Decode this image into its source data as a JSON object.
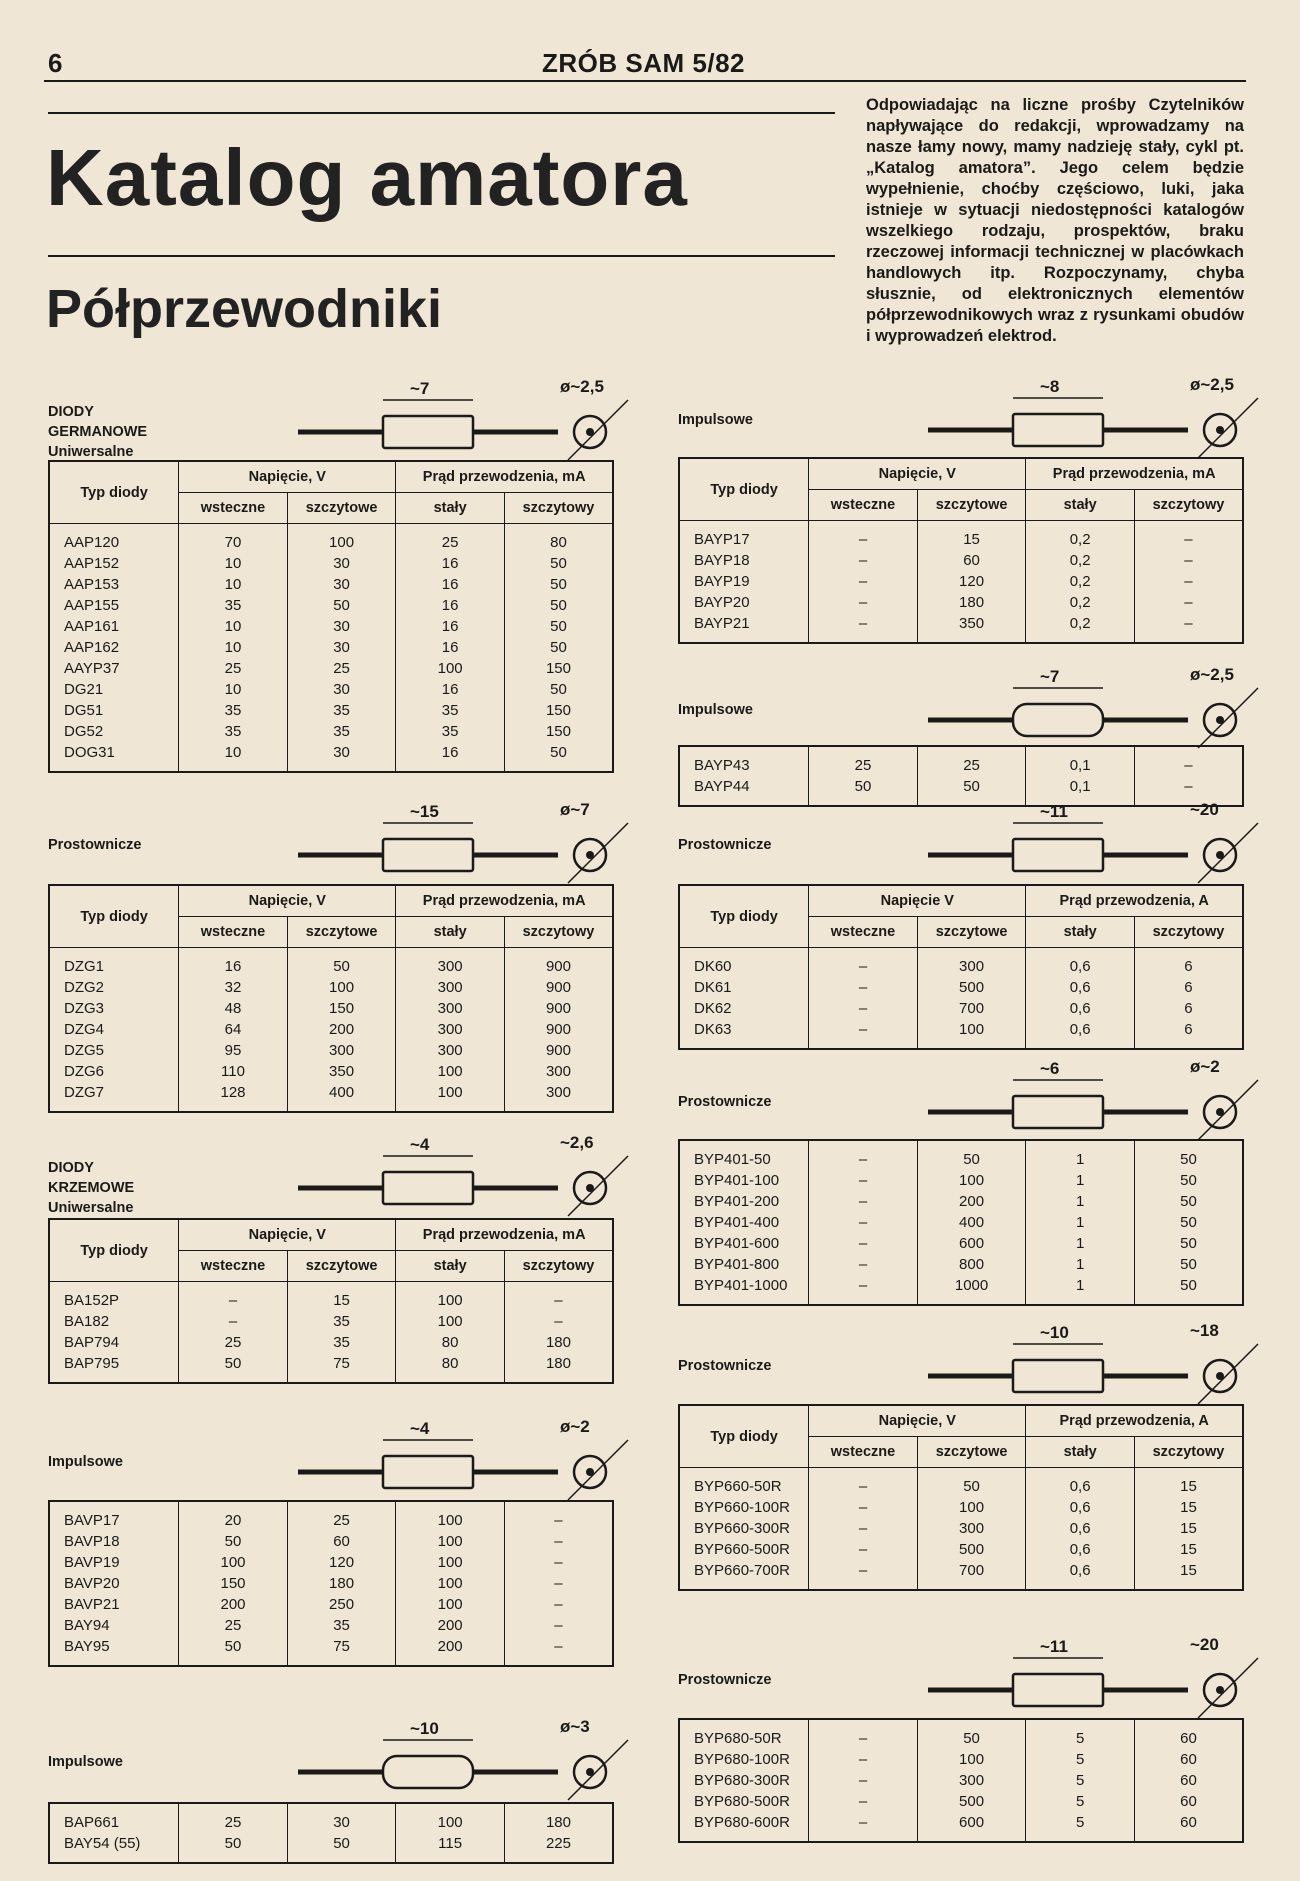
{
  "header": {
    "page_number": "6",
    "magazine": "ZRÓB SAM 5/82"
  },
  "title": "Katalog amatora",
  "subtitle": "Półprzewodniki",
  "intro": "Odpowiadając na liczne prośby Czytelników napływające do redakcji, wprowadzamy na nasze łamy nowy, mamy nadzieję stały, cykl pt. „Katalog amatora”. Jego celem będzie wypełnienie, choćby częściowo, luki, jaka istnieje w sytuacji niedostępności katalogów wszelkiego rodzaju, prospektów, braku rzeczowej informacji technicznej w placówkach handlowych itp. Rozpoczynamy, chyba słusznie, od elektronicznych elementów półprzewodnikowych wraz z rysunkami obudów i wyprowadzeń elektrod.",
  "headers_mA": {
    "type": "Typ diody",
    "voltage": "Napięcie, V",
    "current": "Prąd przewodzenia, mA",
    "cols": [
      "wsteczne",
      "szczytowe",
      "stały",
      "szczytowy"
    ]
  },
  "headers_A": {
    "type": "Typ diody",
    "voltage": "Napięcie V",
    "current": "Prąd przewodzenia, A",
    "cols": [
      "wsteczne",
      "szczytowe",
      "stały",
      "szczytowy"
    ]
  },
  "headers_A2": {
    "type": "Typ diody",
    "voltage": "Napięcie, V",
    "current": "Prąd przewodzenia, A",
    "cols": [
      "wsteczne",
      "szczytowe",
      "stały",
      "szczytowy"
    ]
  },
  "sections": [
    {
      "group": "DIODY GERMANOWE",
      "label": "Uniwersalne",
      "dims": [
        "~7",
        "ø~2,5"
      ],
      "header": "headers_mA",
      "rows": [
        [
          "AAP120",
          "70",
          "100",
          "25",
          "80"
        ],
        [
          "AAP152",
          "10",
          "30",
          "16",
          "50"
        ],
        [
          "AAP153",
          "10",
          "30",
          "16",
          "50"
        ],
        [
          "AAP155",
          "35",
          "50",
          "16",
          "50"
        ],
        [
          "AAP161",
          "10",
          "30",
          "16",
          "50"
        ],
        [
          "AAP162",
          "10",
          "30",
          "16",
          "50"
        ],
        [
          "AAYP37",
          "25",
          "25",
          "100",
          "150"
        ],
        [
          "DG21",
          "10",
          "30",
          "16",
          "50"
        ],
        [
          "DG51",
          "35",
          "35",
          "35",
          "150"
        ],
        [
          "DG52",
          "35",
          "35",
          "35",
          "150"
        ],
        [
          "DOG31",
          "10",
          "30",
          "16",
          "50"
        ]
      ]
    },
    {
      "label": "Prostownicze",
      "dims": [
        "~15",
        "ø~7"
      ],
      "header": "headers_mA",
      "rows": [
        [
          "DZG1",
          "16",
          "50",
          "300",
          "900"
        ],
        [
          "DZG2",
          "32",
          "100",
          "300",
          "900"
        ],
        [
          "DZG3",
          "48",
          "150",
          "300",
          "900"
        ],
        [
          "DZG4",
          "64",
          "200",
          "300",
          "900"
        ],
        [
          "DZG5",
          "95",
          "300",
          "300",
          "900"
        ],
        [
          "DZG6",
          "110",
          "350",
          "100",
          "300"
        ],
        [
          "DZG7",
          "128",
          "400",
          "100",
          "300"
        ]
      ]
    },
    {
      "group": "DIODY KRZEMOWE",
      "label": "Uniwersalne",
      "dims": [
        "~4",
        "~2,6"
      ],
      "header": "headers_mA",
      "rows": [
        [
          "BA152P",
          "–",
          "15",
          "100",
          "–"
        ],
        [
          "BA182",
          "–",
          "35",
          "100",
          "–"
        ],
        [
          "BAP794",
          "25",
          "35",
          "80",
          "180"
        ],
        [
          "BAP795",
          "50",
          "75",
          "80",
          "180"
        ]
      ]
    },
    {
      "label": "Impulsowe",
      "dims": [
        "~4",
        "ø~2"
      ],
      "rows": [
        [
          "BAVP17",
          "20",
          "25",
          "100",
          "–"
        ],
        [
          "BAVP18",
          "50",
          "60",
          "100",
          "–"
        ],
        [
          "BAVP19",
          "100",
          "120",
          "100",
          "–"
        ],
        [
          "BAVP20",
          "150",
          "180",
          "100",
          "–"
        ],
        [
          "BAVP21",
          "200",
          "250",
          "100",
          "–"
        ],
        [
          "BAY94",
          "25",
          "35",
          "200",
          "–"
        ],
        [
          "BAY95",
          "50",
          "75",
          "200",
          "–"
        ]
      ]
    },
    {
      "label": "Impulsowe",
      "dims": [
        "~10",
        "ø~3"
      ],
      "rows": [
        [
          "BAP661",
          "25",
          "30",
          "100",
          "180"
        ],
        [
          "BAY54 (55)",
          "50",
          "50",
          "115",
          "225"
        ]
      ]
    },
    {
      "label": "Impulsowe",
      "dims": [
        "~8",
        "ø~2,5"
      ],
      "header": "headers_mA",
      "rows": [
        [
          "BAYP17",
          "–",
          "15",
          "0,2",
          "–"
        ],
        [
          "BAYP18",
          "–",
          "60",
          "0,2",
          "–"
        ],
        [
          "BAYP19",
          "–",
          "120",
          "0,2",
          "–"
        ],
        [
          "BAYP20",
          "–",
          "180",
          "0,2",
          "–"
        ],
        [
          "BAYP21",
          "–",
          "350",
          "0,2",
          "–"
        ]
      ]
    },
    {
      "label": "Impulsowe",
      "dims": [
        "~7",
        "ø~2,5"
      ],
      "rows": [
        [
          "BAYP43",
          "25",
          "25",
          "0,1",
          "–"
        ],
        [
          "BAYP44",
          "50",
          "50",
          "0,1",
          "–"
        ]
      ]
    },
    {
      "label": "Prostownicze",
      "dims": [
        "~11",
        "~20"
      ],
      "header": "headers_A",
      "rows": [
        [
          "DK60",
          "–",
          "300",
          "0,6",
          "6"
        ],
        [
          "DK61",
          "–",
          "500",
          "0,6",
          "6"
        ],
        [
          "DK62",
          "–",
          "700",
          "0,6",
          "6"
        ],
        [
          "DK63",
          "–",
          "100",
          "0,6",
          "6"
        ]
      ]
    },
    {
      "label": "Prostownicze",
      "dims": [
        "~6",
        "ø~2"
      ],
      "rows": [
        [
          "BYP401-50",
          "–",
          "50",
          "1",
          "50"
        ],
        [
          "BYP401-100",
          "–",
          "100",
          "1",
          "50"
        ],
        [
          "BYP401-200",
          "–",
          "200",
          "1",
          "50"
        ],
        [
          "BYP401-400",
          "–",
          "400",
          "1",
          "50"
        ],
        [
          "BYP401-600",
          "–",
          "600",
          "1",
          "50"
        ],
        [
          "BYP401-800",
          "–",
          "800",
          "1",
          "50"
        ],
        [
          "BYP401-1000",
          "–",
          "1000",
          "1",
          "50"
        ]
      ]
    },
    {
      "label": "Prostownicze",
      "dims": [
        "~10",
        "~18"
      ],
      "header": "headers_A2",
      "rows": [
        [
          "BYP660-50R",
          "–",
          "50",
          "0,6",
          "15"
        ],
        [
          "BYP660-100R",
          "–",
          "100",
          "0,6",
          "15"
        ],
        [
          "BYP660-300R",
          "–",
          "300",
          "0,6",
          "15"
        ],
        [
          "BYP660-500R",
          "–",
          "500",
          "0,6",
          "15"
        ],
        [
          "BYP660-700R",
          "–",
          "700",
          "0,6",
          "15"
        ]
      ]
    },
    {
      "label": "Prostownicze",
      "dims": [
        "~11",
        "~20"
      ],
      "rows": [
        [
          "BYP680-50R",
          "–",
          "50",
          "5",
          "60"
        ],
        [
          "BYP680-100R",
          "–",
          "100",
          "5",
          "60"
        ],
        [
          "BYP680-300R",
          "–",
          "300",
          "5",
          "60"
        ],
        [
          "BYP680-500R",
          "–",
          "500",
          "5",
          "60"
        ],
        [
          "BYP680-600R",
          "–",
          "600",
          "5",
          "60"
        ]
      ]
    }
  ]
}
